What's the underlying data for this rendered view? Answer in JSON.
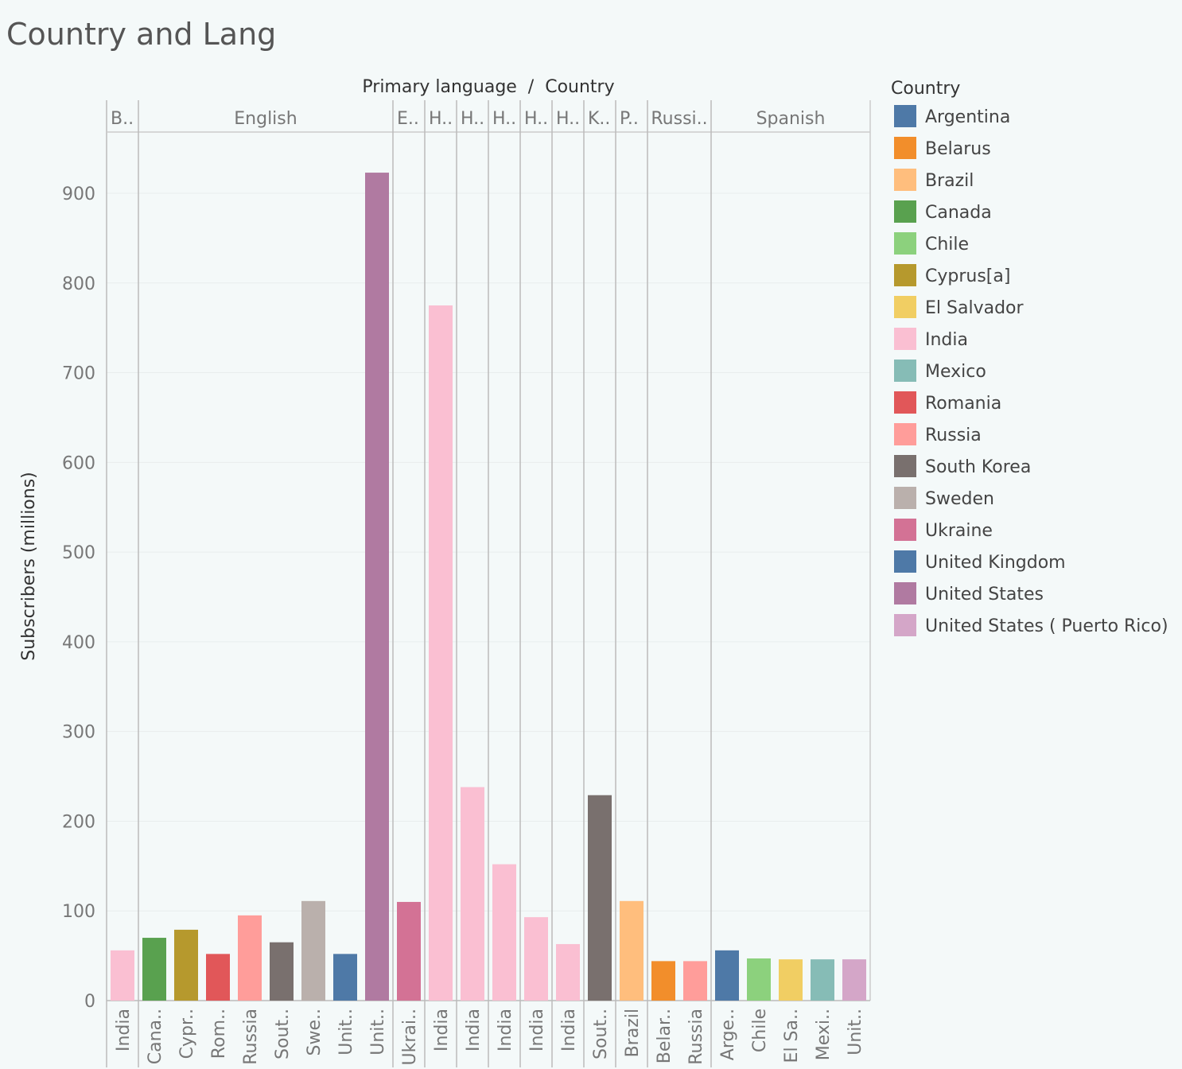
{
  "title": "Country and Lang",
  "chart_data": {
    "type": "bar",
    "title": "Country and Lang",
    "header_label": "Primary language  /  Country",
    "ylabel": "Subscribers (millions)",
    "ylim": [
      0,
      970
    ],
    "yticks": [
      0,
      100,
      200,
      300,
      400,
      500,
      600,
      700,
      800,
      900
    ],
    "grid": true,
    "legend_position": "right",
    "legend_title": "Country",
    "languages": [
      {
        "label": "B..",
        "span": 1
      },
      {
        "label": "English",
        "span": 8
      },
      {
        "label": "E..",
        "span": 1
      },
      {
        "label": "H..",
        "span": 1
      },
      {
        "label": "H..",
        "span": 1
      },
      {
        "label": "H..",
        "span": 1
      },
      {
        "label": "H..",
        "span": 1
      },
      {
        "label": "H..",
        "span": 1
      },
      {
        "label": "K..",
        "span": 1
      },
      {
        "label": "P..",
        "span": 1
      },
      {
        "label": "Russi..",
        "span": 2
      },
      {
        "label": "Spanish",
        "span": 5
      }
    ],
    "bars": [
      {
        "label": "India",
        "country": "India",
        "value": 56
      },
      {
        "label": "Cana..",
        "country": "Canada",
        "value": 70
      },
      {
        "label": "Cypr..",
        "country": "Cyprus[a]",
        "value": 79
      },
      {
        "label": "Rom..",
        "country": "Romania",
        "value": 52
      },
      {
        "label": "Russia",
        "country": "Russia",
        "value": 95
      },
      {
        "label": "Sout..",
        "country": "South Korea",
        "value": 65
      },
      {
        "label": "Swe..",
        "country": "Sweden",
        "value": 111
      },
      {
        "label": "Unit..",
        "country": "United Kingdom",
        "value": 52
      },
      {
        "label": "Unit..",
        "country": "United States",
        "value": 923
      },
      {
        "label": "Ukrai..",
        "country": "Ukraine",
        "value": 110
      },
      {
        "label": "India",
        "country": "India",
        "value": 775
      },
      {
        "label": "India",
        "country": "India",
        "value": 238
      },
      {
        "label": "India",
        "country": "India",
        "value": 152
      },
      {
        "label": "India",
        "country": "India",
        "value": 93
      },
      {
        "label": "India",
        "country": "India",
        "value": 63
      },
      {
        "label": "Sout..",
        "country": "South Korea",
        "value": 229
      },
      {
        "label": "Brazil",
        "country": "Brazil",
        "value": 111
      },
      {
        "label": "Belar..",
        "country": "Belarus",
        "value": 44
      },
      {
        "label": "Russia",
        "country": "Russia",
        "value": 44
      },
      {
        "label": "Arge..",
        "country": "Argentina",
        "value": 56
      },
      {
        "label": "Chile",
        "country": "Chile",
        "value": 47
      },
      {
        "label": "El Sa..",
        "country": "El Salvador",
        "value": 46
      },
      {
        "label": "Mexi..",
        "country": "Mexico",
        "value": 46
      },
      {
        "label": "Unit..",
        "country": "United States ( Puerto Rico)",
        "value": 46
      }
    ],
    "legend": [
      {
        "name": "Argentina",
        "color": "#4e79a7"
      },
      {
        "name": "Belarus",
        "color": "#f28e2b"
      },
      {
        "name": "Brazil",
        "color": "#ffbe7d"
      },
      {
        "name": "Canada",
        "color": "#59a14f"
      },
      {
        "name": "Chile",
        "color": "#8cd17d"
      },
      {
        "name": "Cyprus[a]",
        "color": "#b6992d"
      },
      {
        "name": "El Salvador",
        "color": "#f1ce63"
      },
      {
        "name": "India",
        "color": "#fabfd2"
      },
      {
        "name": "Mexico",
        "color": "#86bcb6"
      },
      {
        "name": "Romania",
        "color": "#e15759"
      },
      {
        "name": "Russia",
        "color": "#ff9d9a"
      },
      {
        "name": "South Korea",
        "color": "#79706e"
      },
      {
        "name": "Sweden",
        "color": "#bab0ac"
      },
      {
        "name": "Ukraine",
        "color": "#d37295"
      },
      {
        "name": "United Kingdom",
        "color": "#4e79a7"
      },
      {
        "name": "United States",
        "color": "#b07aa1"
      },
      {
        "name": "United States ( Puerto Rico)",
        "color": "#d4a6c8"
      }
    ]
  }
}
